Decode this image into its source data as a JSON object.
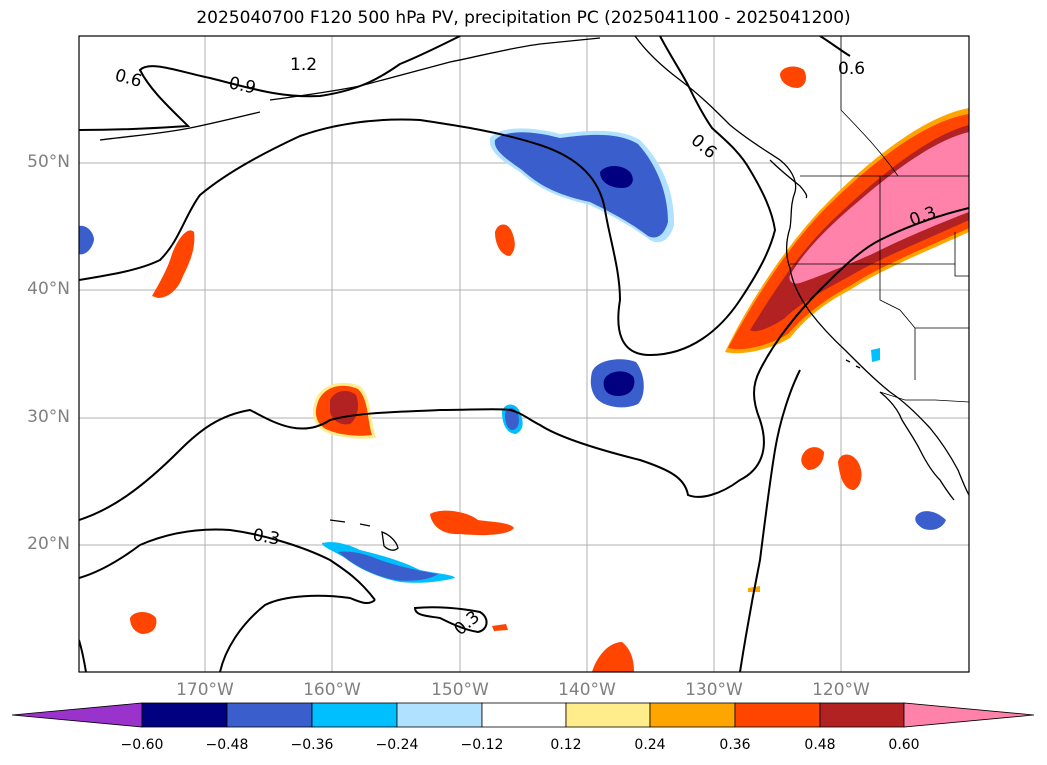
{
  "title": "2025040700 F120 500 hPa PV, precipitation PC (2025041100 - 2025041200)",
  "latitude_ticks": [
    "50°N",
    "40°N",
    "30°N",
    "20°N"
  ],
  "longitude_ticks": [
    "170°W",
    "160°W",
    "150°W",
    "140°W",
    "130°W",
    "120°W"
  ],
  "contour_labels": [
    "0.6",
    "0.9",
    "1.2",
    "0.6",
    "0.6",
    "0.3",
    "0.3",
    "0.3"
  ],
  "colorbar": {
    "labels": [
      "−0.60",
      "−0.48",
      "−0.36",
      "−0.24",
      "−0.12",
      "0.12",
      "0.24",
      "0.36",
      "0.48",
      "0.60"
    ],
    "colors": [
      "#9933cc",
      "#000080",
      "#3a5fcd",
      "#00bfff",
      "#b0e2ff",
      "#ffffff",
      "#ffec8b",
      "#ffa500",
      "#ff4500",
      "#b22222",
      "#ff82ab"
    ]
  },
  "palette": {
    "land_outline": "#000000",
    "pv_contour": "#000000",
    "grid": "#b0b0b0"
  }
}
